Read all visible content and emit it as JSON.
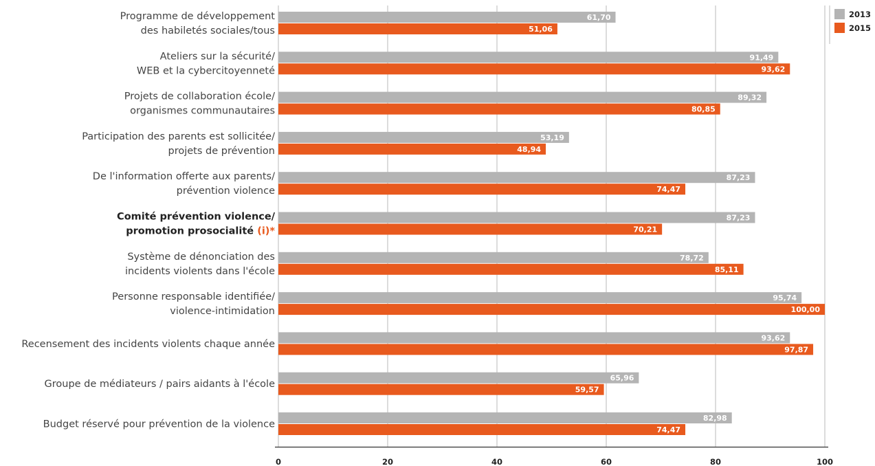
{
  "chart_data": {
    "type": "bar",
    "orientation": "horizontal",
    "categories": [
      {
        "lines": [
          "Programme de développement",
          "des habiletés sociales/tous"
        ],
        "bold": false
      },
      {
        "lines": [
          "Ateliers sur la sécurité/",
          "WEB et la cybercitoyenneté"
        ],
        "bold": false
      },
      {
        "lines": [
          "Projets de collaboration école/",
          "organismes communautaires"
        ],
        "bold": false
      },
      {
        "lines": [
          "Participation des parents est sollicitée/",
          "projets de prévention"
        ],
        "bold": false
      },
      {
        "lines": [
          "De l'information offerte aux parents/",
          "prévention violence"
        ],
        "bold": false
      },
      {
        "lines": [
          "Comité prévention violence/",
          "promotion prosocialité"
        ],
        "bold": true,
        "note": "(i)*"
      },
      {
        "lines": [
          "Système de dénonciation des",
          "incidents violents dans l'école"
        ],
        "bold": false
      },
      {
        "lines": [
          "Personne responsable identifiée/",
          "violence-intimidation"
        ],
        "bold": false
      },
      {
        "lines": [
          "Recensement des incidents violents chaque année"
        ],
        "bold": false
      },
      {
        "lines": [
          "Groupe de médiateurs / pairs aidants à l'école"
        ],
        "bold": false
      },
      {
        "lines": [
          "Budget  réservé pour prévention de la  violence"
        ],
        "bold": false
      }
    ],
    "series": [
      {
        "name": "2013",
        "color": "#B4B4B4",
        "values": [
          61.7,
          91.49,
          89.32,
          53.19,
          87.23,
          87.23,
          78.72,
          95.74,
          93.62,
          65.96,
          82.98
        ],
        "labels": [
          "61,70",
          "91,49",
          "89,32",
          "53,19",
          "87,23",
          "87,23",
          "78,72",
          "95,74",
          "93,62",
          "65,96",
          "82,98"
        ]
      },
      {
        "name": "2015",
        "color": "#E85A1E",
        "values": [
          51.06,
          93.62,
          80.85,
          48.94,
          74.47,
          70.21,
          85.11,
          100.0,
          97.87,
          59.57,
          74.47
        ],
        "labels": [
          "51,06",
          "93,62",
          "80,85",
          "48,94",
          "74,47",
          "70,21",
          "85,11",
          "100,00",
          "97,87",
          "59,57",
          "74,47"
        ]
      }
    ],
    "xlim": [
      0,
      100
    ],
    "xticks": [
      0,
      20,
      40,
      60,
      80,
      100
    ],
    "grid": true,
    "legend_position": "top-right"
  }
}
